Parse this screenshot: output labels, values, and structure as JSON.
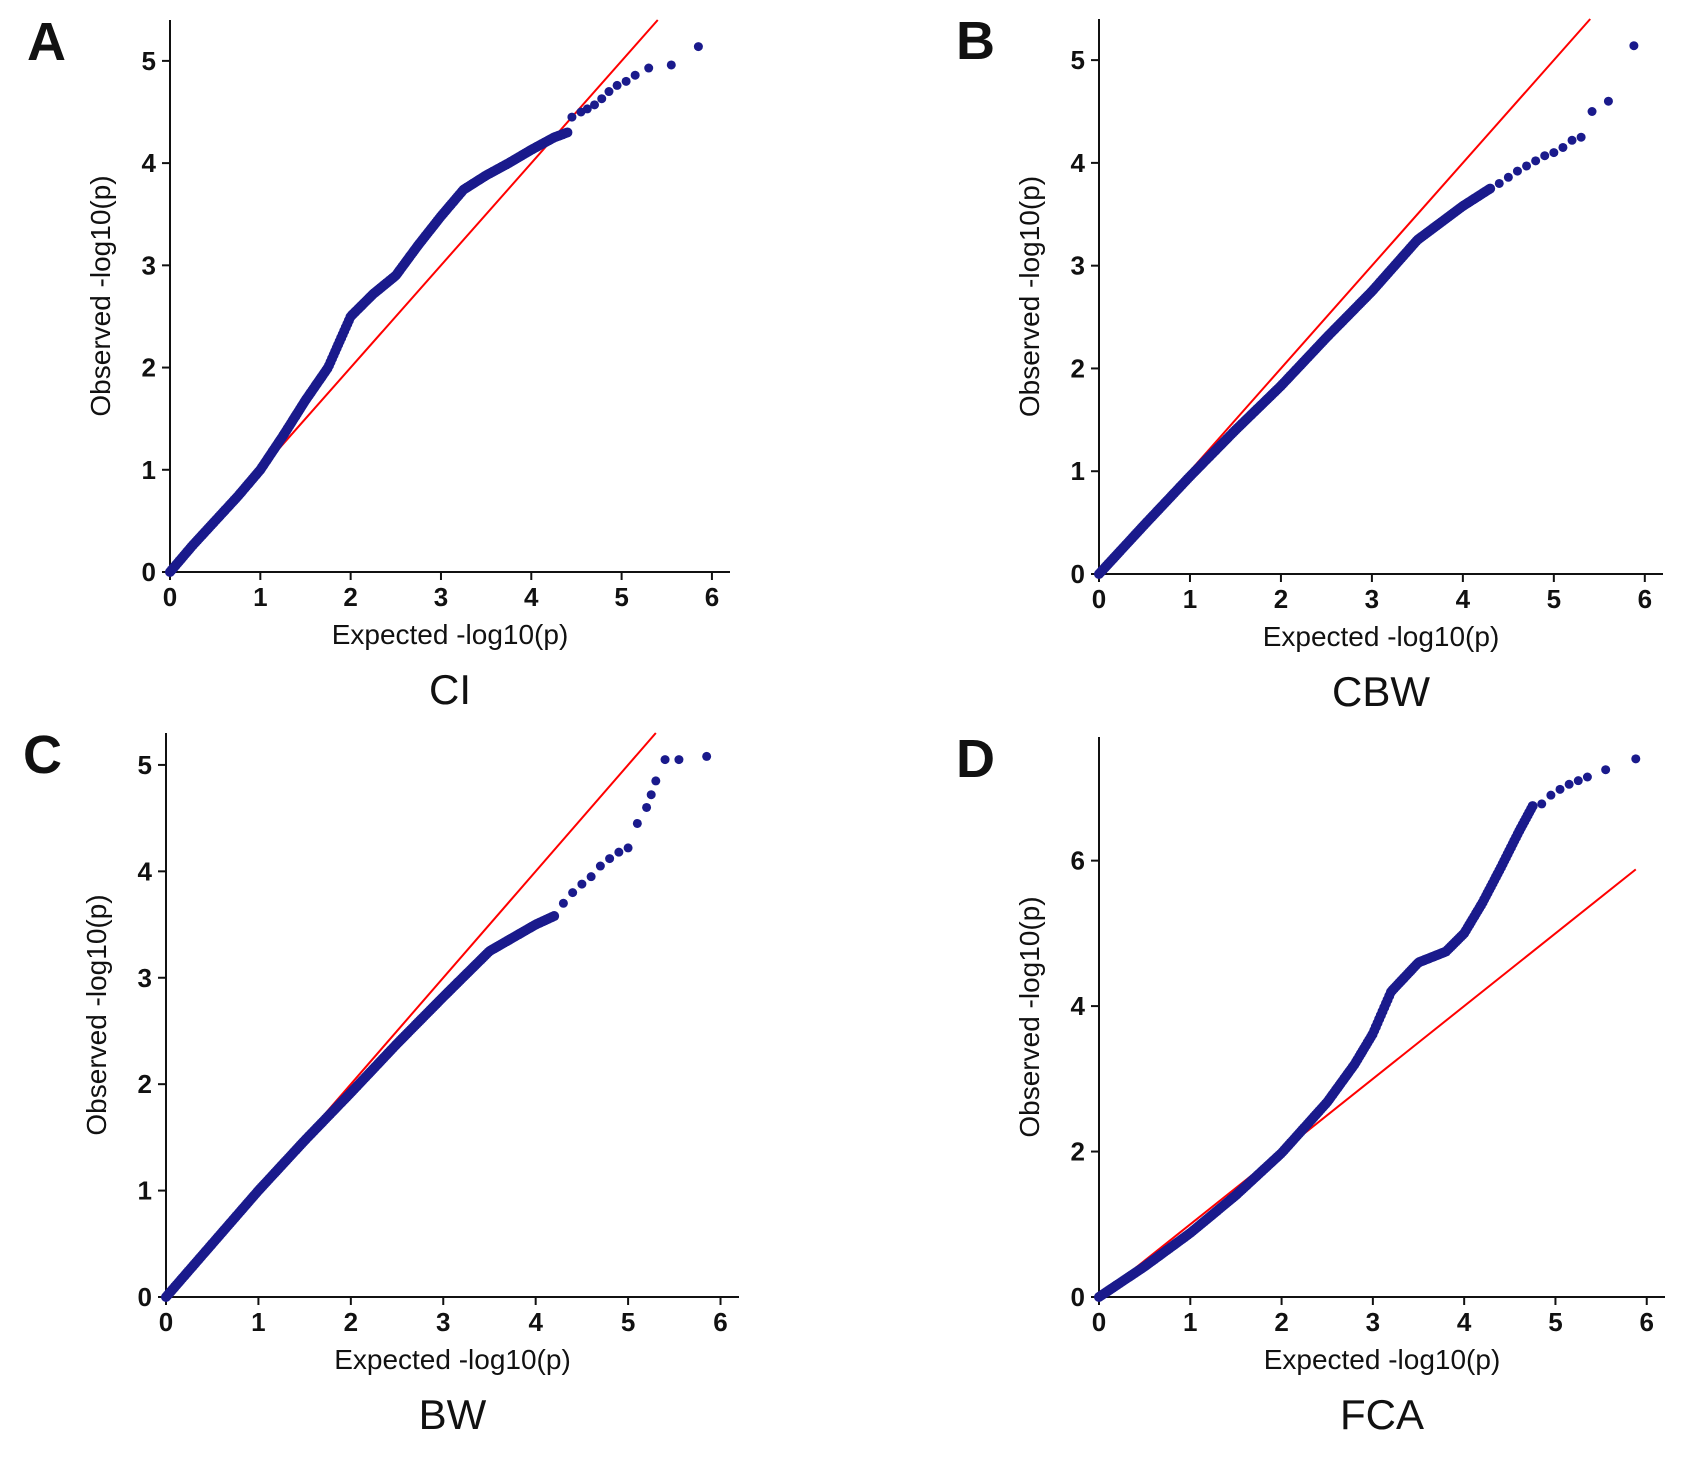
{
  "figure": {
    "colors": {
      "points": "#1a1a8c",
      "reference_line": "#ff0000",
      "axis": "#111111"
    }
  },
  "chart_data": [
    {
      "type": "scatter",
      "panel": "A",
      "title": "CI",
      "xlabel": "Expected  -log10(p)",
      "ylabel": "Observed  -log10(p)",
      "xlim": [
        0,
        6.2
      ],
      "ylim": [
        0,
        5.4
      ],
      "xticks": [
        0,
        1,
        2,
        3,
        4,
        5,
        6
      ],
      "yticks": [
        0,
        1,
        2,
        3,
        4,
        5
      ],
      "reference_line": {
        "x": [
          0,
          5.4
        ],
        "y": [
          0,
          5.4
        ]
      },
      "curve": {
        "x": [
          0,
          0.25,
          0.5,
          0.75,
          1.0,
          1.25,
          1.5,
          1.75,
          2.0,
          2.25,
          2.5,
          2.75,
          3.0,
          3.25,
          3.5,
          3.75,
          4.0,
          4.25,
          4.4
        ],
        "y": [
          0,
          0.26,
          0.5,
          0.74,
          1.0,
          1.33,
          1.68,
          2.0,
          2.5,
          2.72,
          2.9,
          3.2,
          3.48,
          3.74,
          3.88,
          4.0,
          4.13,
          4.25,
          4.3
        ]
      },
      "tail_points": {
        "x": [
          4.45,
          4.55,
          4.62,
          4.7,
          4.78,
          4.86,
          4.95,
          5.05,
          5.15,
          5.3,
          5.55,
          5.85
        ],
        "y": [
          4.45,
          4.5,
          4.53,
          4.57,
          4.63,
          4.7,
          4.76,
          4.8,
          4.86,
          4.93,
          4.96,
          5.14
        ]
      }
    },
    {
      "type": "scatter",
      "panel": "B",
      "title": "CBW",
      "xlabel": "Expected  -log10(p)",
      "ylabel": "Observed  -log10(p)",
      "xlim": [
        0,
        6.2
      ],
      "ylim": [
        0,
        5.4
      ],
      "xticks": [
        0,
        1,
        2,
        3,
        4,
        5,
        6
      ],
      "yticks": [
        0,
        1,
        2,
        3,
        4,
        5
      ],
      "reference_line": {
        "x": [
          0,
          5.4
        ],
        "y": [
          0,
          5.4
        ]
      },
      "curve": {
        "x": [
          0,
          0.5,
          1.0,
          1.5,
          2.0,
          2.5,
          3.0,
          3.5,
          4.0,
          4.3
        ],
        "y": [
          0,
          0.48,
          0.95,
          1.4,
          1.83,
          2.3,
          2.75,
          3.25,
          3.58,
          3.75
        ]
      },
      "tail_points": {
        "x": [
          4.4,
          4.5,
          4.6,
          4.7,
          4.8,
          4.9,
          5.0,
          5.1,
          5.2,
          5.3,
          5.42,
          5.6,
          5.88
        ],
        "y": [
          3.8,
          3.86,
          3.92,
          3.97,
          4.02,
          4.07,
          4.1,
          4.15,
          4.22,
          4.25,
          4.5,
          4.6,
          5.14
        ]
      }
    },
    {
      "type": "scatter",
      "panel": "C",
      "title": "BW",
      "xlabel": "Expected  -log10(p)",
      "ylabel": "Observed  -log10(p)",
      "xlim": [
        0,
        6.2
      ],
      "ylim": [
        0,
        5.3
      ],
      "xticks": [
        0,
        1,
        2,
        3,
        4,
        5,
        6
      ],
      "yticks": [
        0,
        1,
        2,
        3,
        4,
        5
      ],
      "reference_line": {
        "x": [
          0,
          5.3
        ],
        "y": [
          0,
          5.3
        ]
      },
      "curve": {
        "x": [
          0,
          0.5,
          1.0,
          1.5,
          2.0,
          2.5,
          3.0,
          3.5,
          4.0,
          4.2
        ],
        "y": [
          0,
          0.5,
          1.0,
          1.47,
          1.92,
          2.38,
          2.82,
          3.25,
          3.5,
          3.58
        ]
      },
      "tail_points": {
        "x": [
          4.3,
          4.4,
          4.5,
          4.6,
          4.7,
          4.8,
          4.9,
          5.0,
          5.1,
          5.2,
          5.25,
          5.3,
          5.4,
          5.55,
          5.85
        ],
        "y": [
          3.7,
          3.8,
          3.88,
          3.95,
          4.05,
          4.12,
          4.18,
          4.22,
          4.45,
          4.6,
          4.72,
          4.85,
          5.05,
          5.05,
          5.08
        ]
      }
    },
    {
      "type": "scatter",
      "panel": "D",
      "title": "FCA",
      "xlabel": "Expected  -log10(p)",
      "ylabel": "Observed  -log10(p)",
      "xlim": [
        0,
        6.2
      ],
      "ylim": [
        0,
        7.7
      ],
      "xticks": [
        0,
        1,
        2,
        3,
        4,
        5,
        6
      ],
      "yticks": [
        0,
        2,
        4,
        6
      ],
      "reference_line": {
        "x": [
          0,
          5.88
        ],
        "y": [
          0,
          5.88
        ]
      },
      "curve": {
        "x": [
          0,
          0.5,
          1.0,
          1.5,
          2.0,
          2.5,
          2.8,
          3.0,
          3.2,
          3.5,
          3.8,
          4.0,
          4.2,
          4.4,
          4.6,
          4.75
        ],
        "y": [
          0,
          0.42,
          0.88,
          1.4,
          1.98,
          2.68,
          3.2,
          3.62,
          4.2,
          4.6,
          4.75,
          5.0,
          5.42,
          5.9,
          6.4,
          6.75
        ]
      },
      "tail_points": {
        "x": [
          4.85,
          4.95,
          5.05,
          5.15,
          5.25,
          5.35,
          5.55,
          5.88
        ],
        "y": [
          6.78,
          6.9,
          6.98,
          7.05,
          7.1,
          7.15,
          7.25,
          7.4
        ]
      }
    }
  ]
}
